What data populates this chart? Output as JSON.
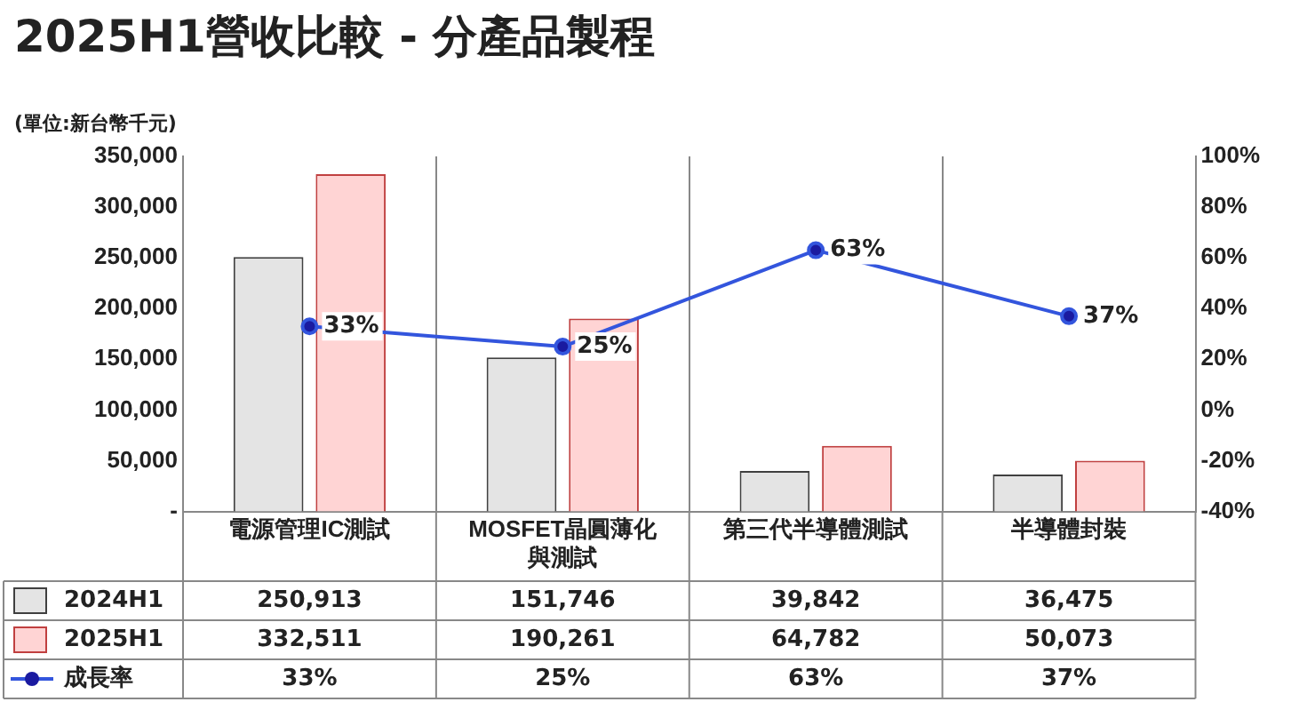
{
  "chart_data": {
    "type": "bar",
    "title": "2025H1營收比較 - 分產品製程",
    "annotations": [
      "(單位:新台幣千元)"
    ],
    "categories": [
      "電源管理IC測試",
      "MOSFET晶圓薄化與測試",
      "第三代半導體測試",
      "半導體封裝"
    ],
    "series": [
      {
        "name": "2024H1",
        "color": "#e4e4e4",
        "values": [
          250913,
          151746,
          39842,
          36475
        ],
        "value_labels": [
          "250,913",
          "151,746",
          "39,842",
          "36,475"
        ]
      },
      {
        "name": "2025H1",
        "color": "#ffd4d4",
        "values": [
          332511,
          190261,
          64782,
          50073
        ],
        "value_labels": [
          "332,511",
          "190,261",
          "64,782",
          "50,073"
        ]
      },
      {
        "name": "成長率",
        "type": "line",
        "axis": "y2",
        "color": "#3355dd",
        "values": [
          33,
          25,
          63,
          37
        ],
        "value_labels": [
          "33%",
          "25%",
          "63%",
          "37%"
        ]
      }
    ],
    "ylim": [
      0,
      350000
    ],
    "yticks": [
      {
        "value": 0,
        "label": "-"
      },
      {
        "value": 50000,
        "label": "50,000"
      },
      {
        "value": 100000,
        "label": "100,000"
      },
      {
        "value": 150000,
        "label": "150,000"
      },
      {
        "value": 200000,
        "label": "200,000"
      },
      {
        "value": 250000,
        "label": "250,000"
      },
      {
        "value": 300000,
        "label": "300,000"
      },
      {
        "value": 350000,
        "label": "350,000"
      }
    ],
    "y2lim": [
      -40,
      100
    ],
    "y2ticks": [
      {
        "value": -40,
        "label": "-40%"
      },
      {
        "value": -20,
        "label": "-20%"
      },
      {
        "value": 0,
        "label": "0%"
      },
      {
        "value": 20,
        "label": "20%"
      },
      {
        "value": 40,
        "label": "40%"
      },
      {
        "value": 60,
        "label": "60%"
      },
      {
        "value": 80,
        "label": "80%"
      },
      {
        "value": 100,
        "label": "100%"
      }
    ],
    "grid": "x",
    "marker": "circle",
    "legend": "bottom left"
  }
}
